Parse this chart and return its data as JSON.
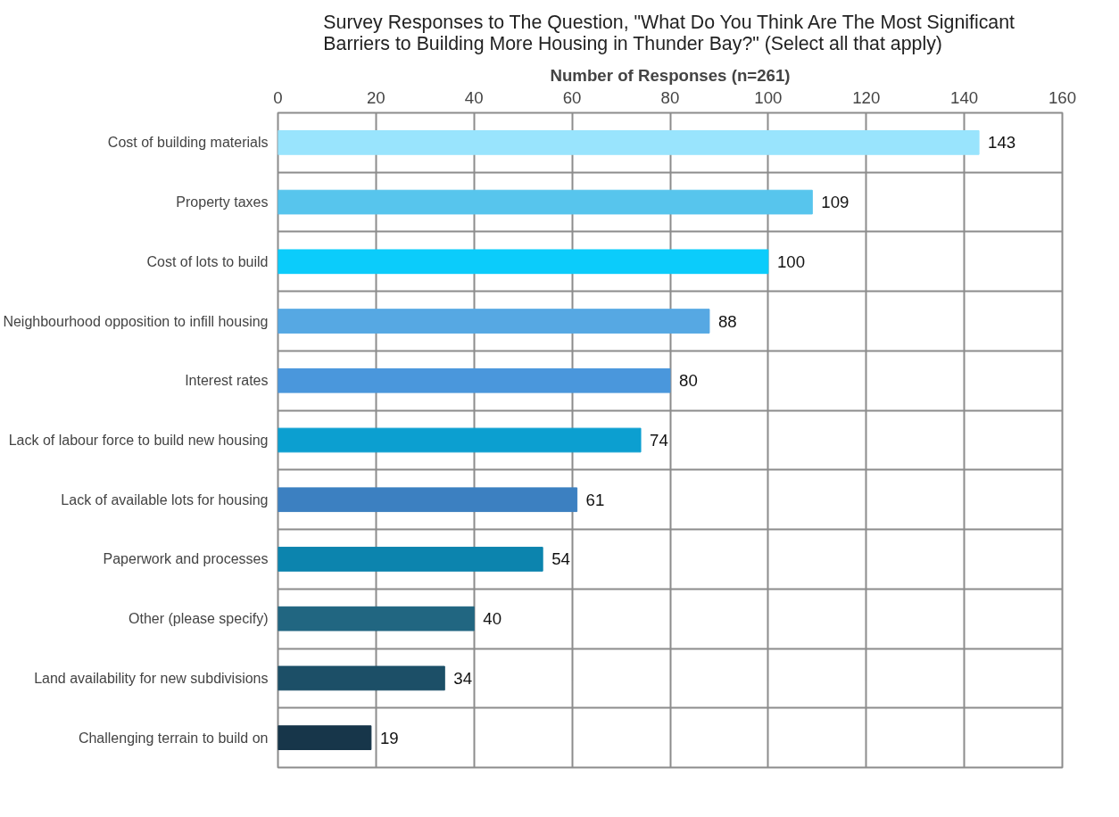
{
  "chart_data": {
    "type": "bar",
    "orientation": "horizontal",
    "title": "Survey Responses to The Question, \"What Do You Think Are The Most Significant Barriers to Building More Housing in Thunder Bay?\" (Select all that apply)",
    "xlabel": "Number of Responses (n=261)",
    "categories": [
      "Cost of building materials",
      "Property taxes",
      "Cost of lots to build",
      "Neighbourhood opposition to infill housing",
      "Interest rates",
      "Lack of labour force to build new housing",
      "Lack of available lots for housing",
      "Paperwork and processes",
      "Other (please specify)",
      "Land availability for new subdivisions",
      "Challenging terrain to build on"
    ],
    "values": [
      143,
      109,
      100,
      88,
      80,
      74,
      61,
      54,
      40,
      34,
      19
    ],
    "colors": [
      "#99e4fd",
      "#57c5ed",
      "#0bccfb",
      "#56a8e3",
      "#4a97dc",
      "#0c9fd0",
      "#3c80c1",
      "#0c84ae",
      "#216681",
      "#1c4f67",
      "#17364a"
    ],
    "xlim": [
      0,
      160
    ],
    "xticks": [
      0,
      20,
      40,
      60,
      80,
      100,
      120,
      140,
      160
    ],
    "grid": true,
    "data_labels": true
  }
}
